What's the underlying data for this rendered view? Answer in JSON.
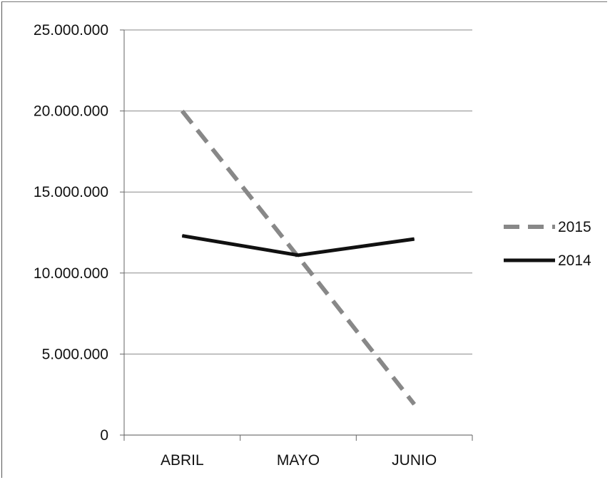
{
  "chart_data": {
    "type": "line",
    "categories": [
      "ABRIL",
      "MAYO",
      "JUNIO"
    ],
    "series": [
      {
        "name": "2015",
        "values": [
          20000000,
          11000000,
          1900000
        ],
        "color": "#888888",
        "dash": "dashed"
      },
      {
        "name": "2014",
        "values": [
          12300000,
          11100000,
          12100000
        ],
        "color": "#111111",
        "dash": "solid"
      }
    ],
    "ylim": [
      0,
      25000000
    ],
    "yticks": [
      0,
      5000000,
      10000000,
      15000000,
      20000000,
      25000000
    ],
    "ytick_labels": [
      "0",
      "5.000.000",
      "10.000.000",
      "15.000.000",
      "20.000.000",
      "25.000.000"
    ],
    "grid": true,
    "legend_position": "right"
  }
}
